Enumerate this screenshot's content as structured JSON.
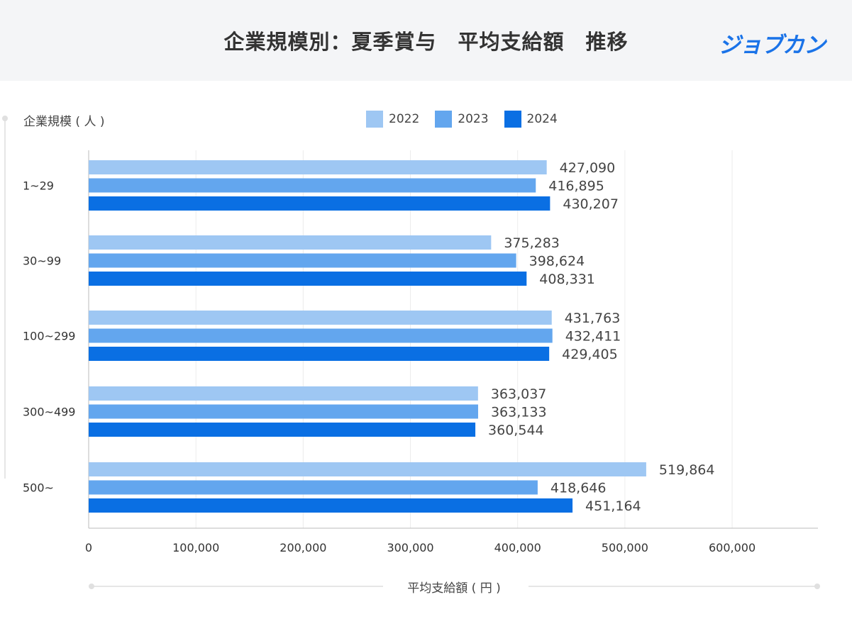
{
  "header": {
    "title": "企業規模別：夏季賞与　平均支給額　推移",
    "brand": "ジョブカン"
  },
  "colors": {
    "2022": "#9ec7f3",
    "2023": "#63a6ee",
    "2024": "#0a6fe3",
    "grid": "#ececec",
    "axis": "#bbbbbb"
  },
  "chart_data": {
    "type": "bar",
    "orientation": "horizontal",
    "title": "企業規模別：夏季賞与　平均支給額　推移",
    "ylabel": "企業規模 ( 人 )",
    "xlabel": "平均支給額 ( 円 )",
    "categories": [
      "1~29",
      "30~99",
      "100~299",
      "300~499",
      "500~"
    ],
    "series": [
      {
        "name": "2022",
        "values": [
          427090,
          375283,
          431763,
          363037,
          519864
        ],
        "labels": [
          "427,090",
          "375,283",
          "431,763",
          "363,037",
          "519,864"
        ]
      },
      {
        "name": "2023",
        "values": [
          416895,
          398624,
          432411,
          363133,
          418646
        ],
        "labels": [
          "416,895",
          "398,624",
          "432,411",
          "363,133",
          "418,646"
        ]
      },
      {
        "name": "2024",
        "values": [
          430207,
          408331,
          429405,
          360544,
          451164
        ],
        "labels": [
          "430,207",
          "408,331",
          "429,405",
          "360,544",
          "451,164"
        ]
      }
    ],
    "xlim": [
      0,
      680000
    ],
    "xticks": [
      0,
      100000,
      200000,
      300000,
      400000,
      500000,
      600000
    ],
    "xtick_labels": [
      "0",
      "100,000",
      "200,000",
      "300,000",
      "400,000",
      "500,000",
      "600,000"
    ],
    "legend": [
      "2022",
      "2023",
      "2024"
    ],
    "grid": true,
    "legend_position": "top-center"
  }
}
